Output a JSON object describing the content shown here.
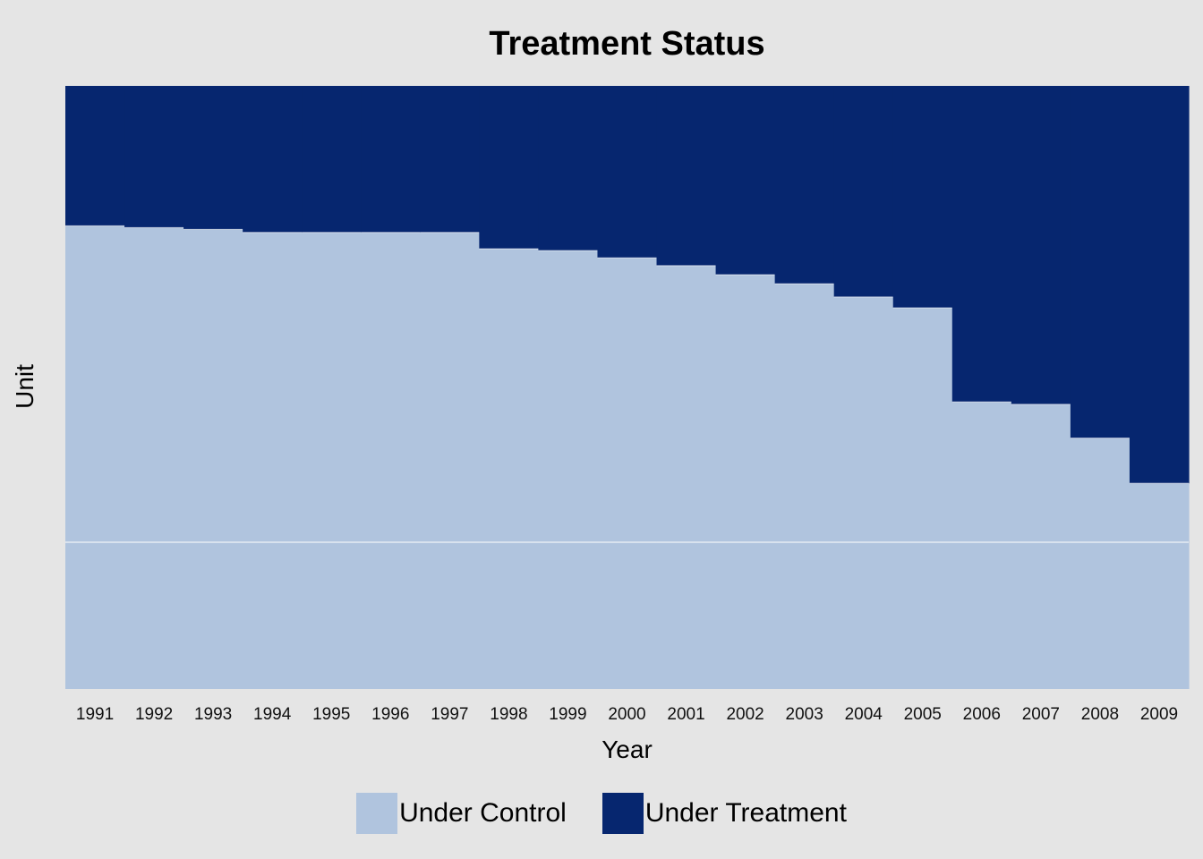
{
  "chart_data": {
    "type": "heatmap",
    "title": "Treatment Status",
    "xlabel": "Year",
    "ylabel": "Unit",
    "categories": [
      "1991",
      "1992",
      "1993",
      "1994",
      "1995",
      "1996",
      "1997",
      "1998",
      "1999",
      "2000",
      "2001",
      "2002",
      "2003",
      "2004",
      "2005",
      "2006",
      "2007",
      "2008",
      "2009"
    ],
    "series": [
      {
        "name": "Under Control",
        "values": [
          0.768,
          0.765,
          0.762,
          0.757,
          0.757,
          0.757,
          0.757,
          0.73,
          0.727,
          0.715,
          0.702,
          0.687,
          0.672,
          0.65,
          0.632,
          0.476,
          0.472,
          0.416,
          0.341
        ]
      },
      {
        "name": "Under Treatment",
        "values": [
          0.232,
          0.235,
          0.238,
          0.243,
          0.243,
          0.243,
          0.243,
          0.27,
          0.273,
          0.285,
          0.298,
          0.313,
          0.328,
          0.35,
          0.368,
          0.524,
          0.528,
          0.584,
          0.659
        ]
      }
    ],
    "colors": {
      "control": "#b0c4de",
      "treatment": "#06266f",
      "divider": "#ffffff"
    },
    "grid": false,
    "legend_position": "bottom"
  }
}
